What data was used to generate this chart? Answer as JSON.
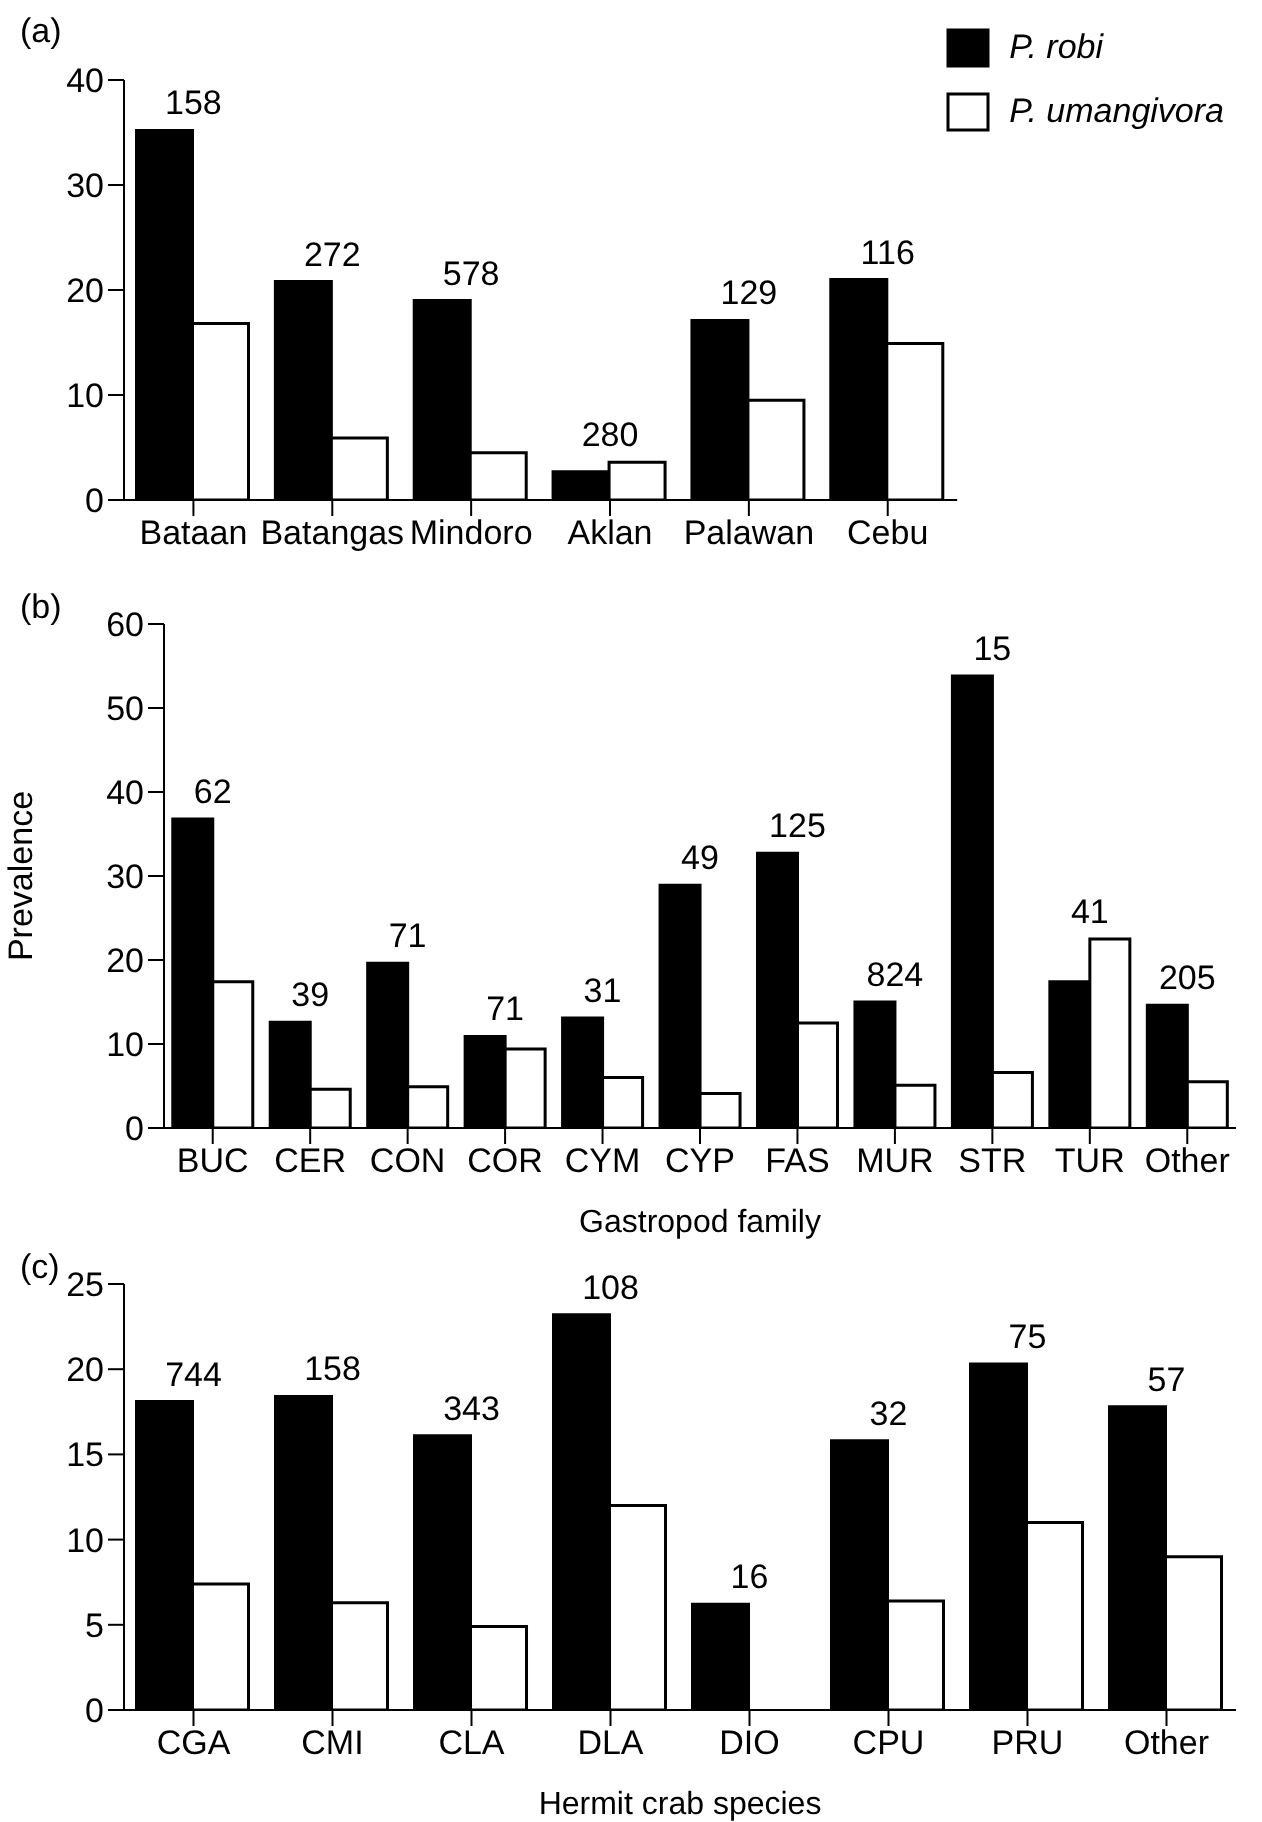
{
  "chart_data": [
    {
      "type": "bar",
      "title": "(a)",
      "categories": [
        "Bataan",
        "Batangas",
        "Mindoro",
        "Aklan",
        "Palawan",
        "Cebu"
      ],
      "series": [
        {
          "name": "P. robi",
          "color": "#000000",
          "values": [
            35.2,
            20.8,
            19.0,
            2.7,
            17.1,
            21.0
          ]
        },
        {
          "name": "P. umangivora",
          "color": "#ffffff",
          "values": [
            16.8,
            5.9,
            4.5,
            3.6,
            9.5,
            14.9
          ]
        }
      ],
      "ylim": [
        0,
        40
      ],
      "yticks": [
        0,
        10,
        20,
        30,
        40
      ],
      "legend": "top right",
      "annotations": [
        {
          "text": "158",
          "x": "Bataan",
          "y": 35.2
        },
        {
          "text": "272",
          "x": "Batangas",
          "y": 20.8
        },
        {
          "text": "578",
          "x": "Mindoro",
          "y": 19.0
        },
        {
          "text": "280",
          "x": "Aklan",
          "y": 3.6
        },
        {
          "text": "129",
          "x": "Palawan",
          "y": 17.1
        },
        {
          "text": "116",
          "x": "Cebu",
          "y": 21.0
        }
      ]
    },
    {
      "type": "bar",
      "title": "(b)",
      "xlabel": "Gastropod family",
      "ylabel": "Prevalence",
      "categories": [
        "BUC",
        "CER",
        "CON",
        "COR",
        "CYM",
        "CYP",
        "FAS",
        "MUR",
        "STR",
        "TUR",
        "Other"
      ],
      "series": [
        {
          "color": "#000000",
          "values": [
            36.8,
            12.6,
            19.6,
            10.9,
            13.1,
            28.9,
            32.7,
            15.0,
            53.8,
            17.4,
            14.6
          ]
        },
        {
          "color": "#ffffff",
          "values": [
            17.4,
            4.6,
            4.9,
            9.4,
            6.0,
            4.1,
            12.5,
            5.1,
            6.6,
            22.5,
            5.5
          ]
        }
      ],
      "ylim": [
        0,
        60
      ],
      "yticks": [
        0,
        10,
        20,
        30,
        40,
        50,
        60
      ],
      "annotations": [
        {
          "text": "62",
          "x": "BUC",
          "y": 36.8
        },
        {
          "text": "39",
          "x": "CER",
          "y": 12.6
        },
        {
          "text": "71",
          "x": "CON",
          "y": 19.6
        },
        {
          "text": "71",
          "x": "COR",
          "y": 10.9
        },
        {
          "text": "31",
          "x": "CYM",
          "y": 13.1
        },
        {
          "text": "49",
          "x": "CYP",
          "y": 28.9
        },
        {
          "text": "125",
          "x": "FAS",
          "y": 32.7
        },
        {
          "text": "824",
          "x": "MUR",
          "y": 15.0
        },
        {
          "text": "15",
          "x": "STR",
          "y": 53.8
        },
        {
          "text": "41",
          "x": "TUR",
          "y": 22.5
        },
        {
          "text": "205",
          "x": "Other",
          "y": 14.6
        }
      ]
    },
    {
      "type": "bar",
      "title": "(c)",
      "xlabel": "Hermit crab species",
      "categories": [
        "CGA",
        "CMI",
        "CLA",
        "DLA",
        "DIO",
        "CPU",
        "PRU",
        "Other"
      ],
      "series": [
        {
          "color": "#000000",
          "values": [
            18.1,
            18.4,
            16.1,
            23.2,
            6.2,
            15.8,
            20.3,
            17.8
          ]
        },
        {
          "color": "#ffffff",
          "values": [
            7.4,
            6.3,
            4.9,
            12.0,
            null,
            6.4,
            11.0,
            9.0
          ]
        }
      ],
      "ylim": [
        0,
        25
      ],
      "yticks": [
        0,
        5,
        10,
        15,
        20,
        25
      ],
      "annotations": [
        {
          "text": "744",
          "x": "CGA",
          "y": 18.1
        },
        {
          "text": "158",
          "x": "CMI",
          "y": 18.4
        },
        {
          "text": "343",
          "x": "CLA",
          "y": 16.1
        },
        {
          "text": "108",
          "x": "DLA",
          "y": 23.2
        },
        {
          "text": "16",
          "x": "DIO",
          "y": 6.2
        },
        {
          "text": "32",
          "x": "CPU",
          "y": 15.8
        },
        {
          "text": "75",
          "x": "PRU",
          "y": 20.3
        },
        {
          "text": "57",
          "x": "Other",
          "y": 17.8
        }
      ]
    }
  ]
}
